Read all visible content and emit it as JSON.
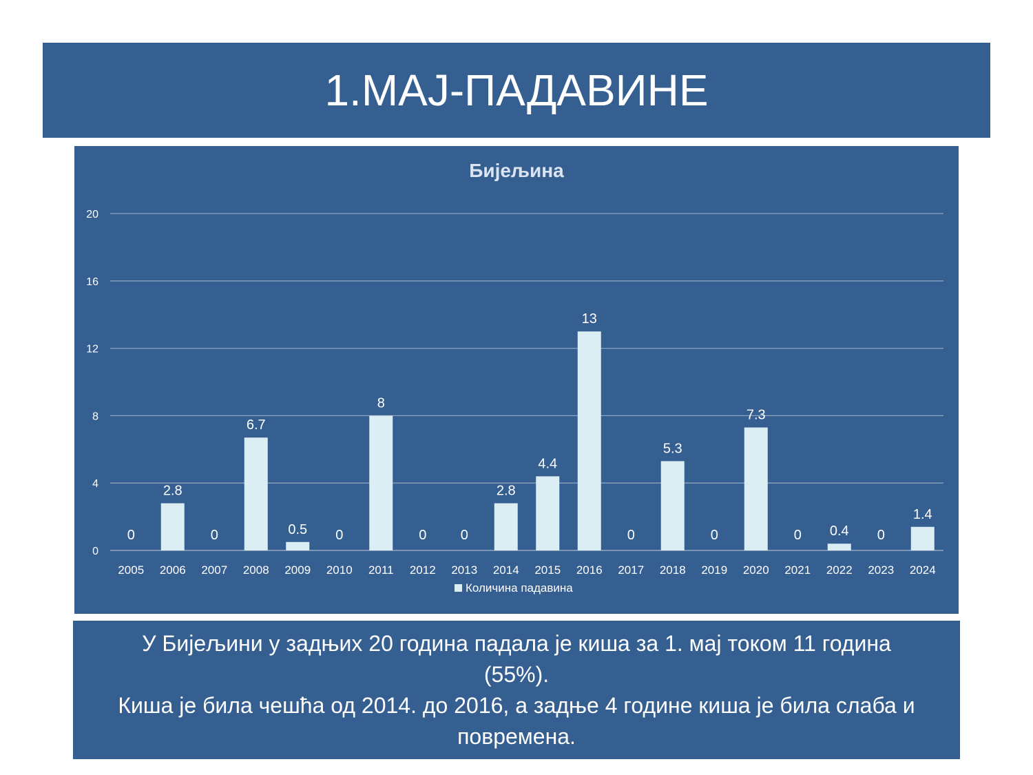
{
  "slide_title": "1.МАЈ-ПАДАВИНЕ",
  "note": {
    "line1": "У Бијељини у задњих 20 година падала је киша за 1. мај током 11 година",
    "line2": "(55%).",
    "line3": "Киша је била чешћа од 2014. до 2016, а задње 4 године киша је била слаба и",
    "line4": "повремена."
  },
  "colors": {
    "panel": "#365f91",
    "bar": "#dbeef4",
    "grid": "#8ea3bd",
    "text": "#ffffff"
  },
  "chart_data": {
    "type": "bar",
    "title": "Бијељина",
    "categories": [
      "2005",
      "2006",
      "2007",
      "2008",
      "2009",
      "2010",
      "2011",
      "2012",
      "2013",
      "2014",
      "2015",
      "2016",
      "2017",
      "2018",
      "2019",
      "2020",
      "2021",
      "2022",
      "2023",
      "2024"
    ],
    "series": [
      {
        "name": "Количина падавина",
        "values": [
          0,
          2.8,
          0,
          6.7,
          0.5,
          0,
          8,
          0,
          0,
          2.8,
          4.4,
          13,
          0,
          5.3,
          0,
          7.3,
          0,
          0.4,
          0,
          1.4
        ]
      }
    ],
    "ylim": [
      0,
      20
    ],
    "yticks": [
      0,
      4,
      8,
      12,
      16,
      20
    ],
    "grid": true,
    "legend": "bottom",
    "data_labels": true
  }
}
